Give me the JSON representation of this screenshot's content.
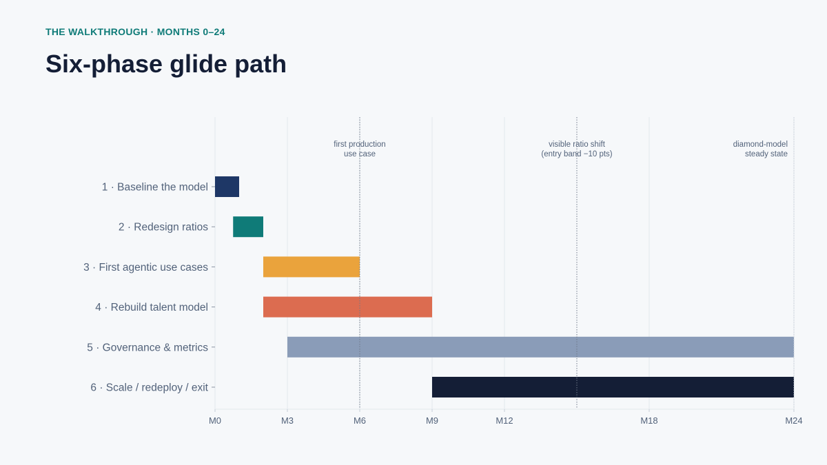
{
  "header": {
    "eyebrow": "THE WALKTHROUGH · MONTHS 0–24",
    "title": "Six-phase glide path"
  },
  "chart_data": {
    "type": "gantt",
    "xlabel": "",
    "ylabel": "",
    "xlim": [
      0,
      24
    ],
    "x_ticks": [
      {
        "value": 0,
        "label": "M0"
      },
      {
        "value": 3,
        "label": "M3"
      },
      {
        "value": 6,
        "label": "M6"
      },
      {
        "value": 9,
        "label": "M9"
      },
      {
        "value": 12,
        "label": "M12"
      },
      {
        "value": 18,
        "label": "M18"
      },
      {
        "value": 24,
        "label": "M24"
      }
    ],
    "grid": true,
    "tasks": [
      {
        "label": "1 · Baseline the model",
        "start": 0,
        "end": 1,
        "color": "#1e3766"
      },
      {
        "label": "2 · Redesign ratios",
        "start": 0.75,
        "end": 2,
        "color": "#0f7b78"
      },
      {
        "label": "3 · First agentic use cases",
        "start": 2,
        "end": 6,
        "color": "#eaa33c"
      },
      {
        "label": "4 · Rebuild talent model",
        "start": 2,
        "end": 9,
        "color": "#dc6c50"
      },
      {
        "label": "5 · Governance & metrics",
        "start": 3,
        "end": 24,
        "color": "#8a9cb8"
      },
      {
        "label": "6 · Scale / redeploy / exit",
        "start": 9,
        "end": 24,
        "color": "#141e36"
      }
    ],
    "milestones": [
      {
        "x": 6,
        "lines": [
          "first production",
          "use case"
        ],
        "align": "middle"
      },
      {
        "x": 15,
        "lines": [
          "visible ratio shift",
          "(entry band −10 pts)"
        ],
        "align": "middle"
      },
      {
        "x": 24,
        "lines": [
          "diamond-model",
          "steady state"
        ],
        "align": "end"
      }
    ]
  }
}
